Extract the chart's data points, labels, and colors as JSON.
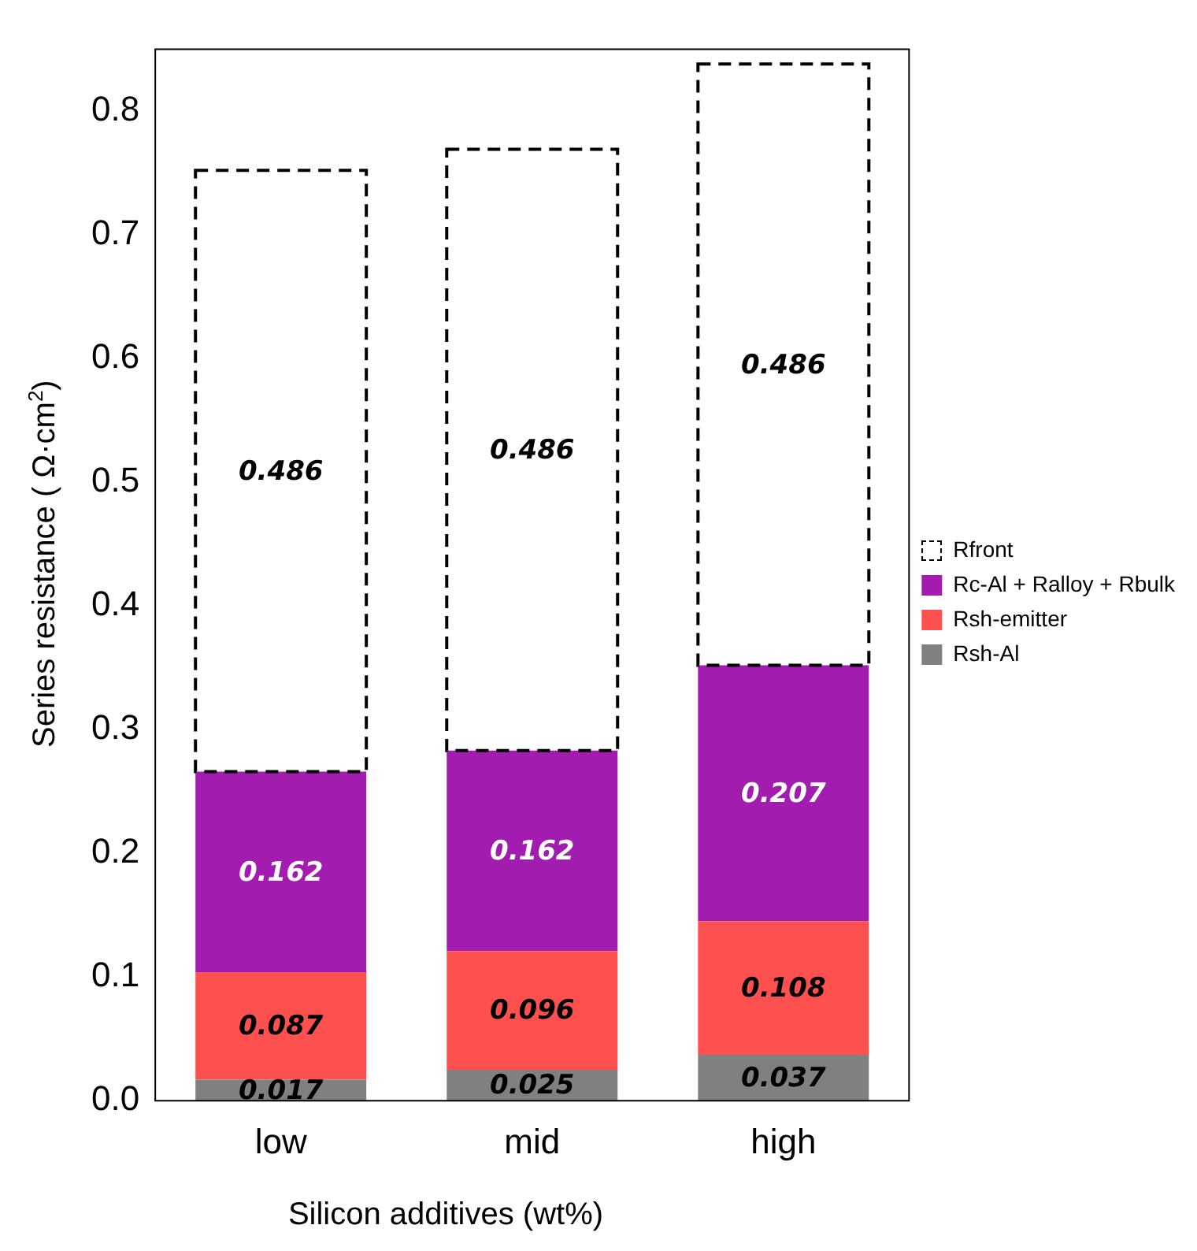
{
  "chart_data": {
    "type": "bar",
    "stacked": true,
    "xlabel": "Silicon additives (wt%)",
    "ylabel": "Series resistance ( Ω·cm$^{2}$)",
    "categories": [
      "low",
      "mid",
      "high"
    ],
    "series": [
      {
        "name": "Rsh-Al",
        "color": "#808080",
        "values": [
          0.017,
          0.025,
          0.037
        ]
      },
      {
        "name": "Rsh-emitter",
        "color": "#ff5050",
        "values": [
          0.087,
          0.096,
          0.108
        ]
      },
      {
        "name": "Rc-Al + Ralloy + Rbulk",
        "color": "#a21caf",
        "values": [
          0.162,
          0.162,
          0.207
        ]
      },
      {
        "name": "Rfront",
        "color": "#ffffff",
        "line_style": "dashed",
        "values": [
          0.486,
          0.486,
          0.486
        ]
      }
    ],
    "ylim": [
      0,
      0.85
    ],
    "yticks": [
      {
        "value": 0,
        "label": "0.0"
      },
      0.1,
      0.2,
      0.3,
      0.4,
      0.5,
      0.6,
      0.7,
      0.8
    ],
    "grid": false,
    "legend": "right",
    "data_labels": true
  }
}
